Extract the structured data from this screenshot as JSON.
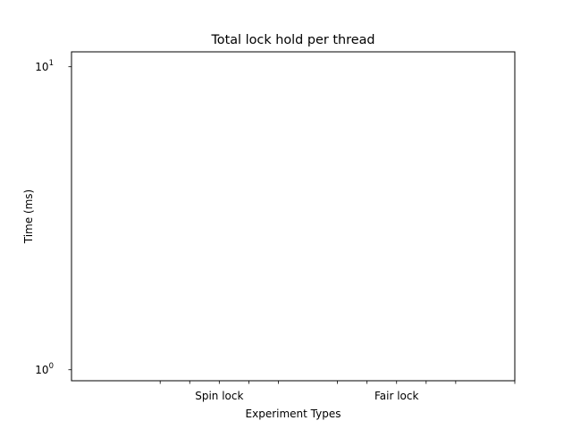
{
  "chart_data": {
    "type": "bar",
    "title": "Total lock hold per thread",
    "xlabel": "Experiment Types",
    "ylabel": "Time (ms)",
    "yscale": "log",
    "ylim": [
      0.92,
      11.2
    ],
    "yticks": [
      {
        "value": 1,
        "base": "10",
        "exp": "0"
      },
      {
        "value": 10,
        "base": "10",
        "exp": "1"
      }
    ],
    "xlim": [
      -0.5,
      14.5
    ],
    "x_minor_tick_positions": [
      2.5,
      3.5,
      5.5,
      6.5,
      8.5,
      9.5,
      11.5,
      12.5,
      14.5
    ],
    "categories": [
      {
        "label": "Spin lock",
        "x": 4.5
      },
      {
        "label": "Fair lock",
        "x": 10.5
      }
    ],
    "series": [],
    "grid": false,
    "legend": "none"
  }
}
